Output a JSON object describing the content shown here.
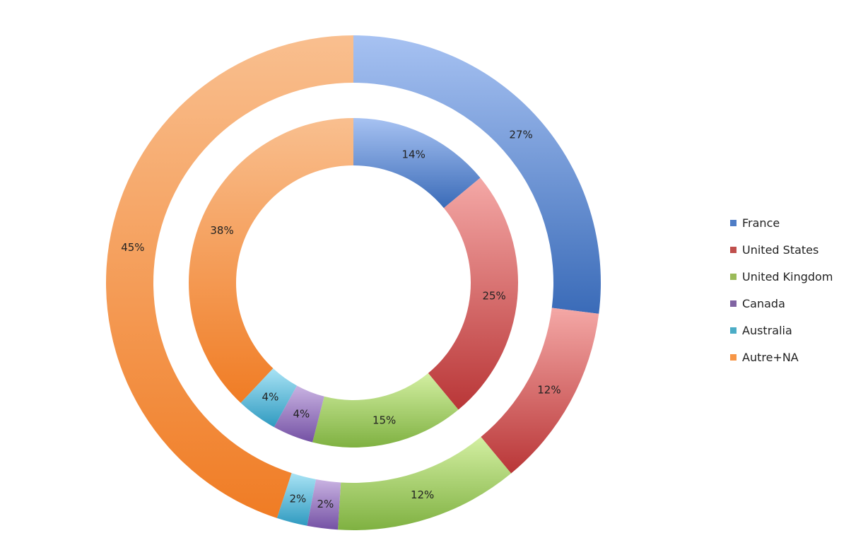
{
  "chart_data": {
    "type": "donut",
    "categories": [
      "France",
      "United States",
      "United Kingdom",
      "Canada",
      "Australia",
      "Autre+NA"
    ],
    "series": [
      {
        "ring": "outer",
        "values": [
          27,
          12,
          12,
          2,
          2,
          45
        ],
        "labels": [
          "27%",
          "12%",
          "12%",
          "2%",
          "2%",
          "45%"
        ]
      },
      {
        "ring": "inner",
        "values": [
          14,
          25,
          15,
          4,
          4,
          38
        ],
        "labels": [
          "14%",
          "25%",
          "15%",
          "4%",
          "4%",
          "38%"
        ]
      }
    ],
    "colors": {
      "France": {
        "light": "#a7c2f2",
        "dark": "#3a6bb8"
      },
      "United States": {
        "light": "#f4a8a6",
        "dark": "#b93637"
      },
      "United Kingdom": {
        "light": "#d3efa2",
        "dark": "#7fb141"
      },
      "Canada": {
        "light": "#c9b3e2",
        "dark": "#7451a4"
      },
      "Australia": {
        "light": "#a9e3f5",
        "dark": "#2f9ac0"
      },
      "Autre+NA": {
        "light": "#f9bf8f",
        "dark": "#f07c24"
      }
    },
    "legend": {
      "placement": "right",
      "items": [
        {
          "label": "France",
          "color": "#4f7dc6"
        },
        {
          "label": "United States",
          "color": "#c0504d"
        },
        {
          "label": "United Kingdom",
          "color": "#9bbb59"
        },
        {
          "label": "Canada",
          "color": "#8064a2"
        },
        {
          "label": "Australia",
          "color": "#4bacc6"
        },
        {
          "label": "Autre+NA",
          "color": "#f79646"
        }
      ]
    }
  }
}
